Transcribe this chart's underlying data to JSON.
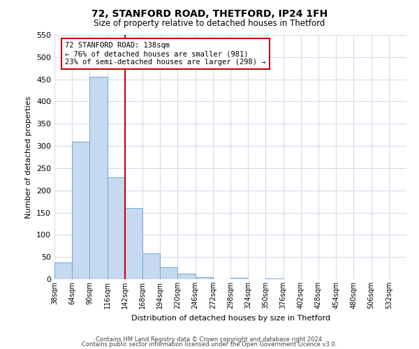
{
  "title": "72, STANFORD ROAD, THETFORD, IP24 1FH",
  "subtitle": "Size of property relative to detached houses in Thetford",
  "xlabel": "Distribution of detached houses by size in Thetford",
  "ylabel": "Number of detached properties",
  "footnote1": "Contains HM Land Registry data © Crown copyright and database right 2024.",
  "footnote2": "Contains public sector information licensed under the Open Government Licence v3.0.",
  "annotation_title": "72 STANFORD ROAD: 138sqm",
  "annotation_line1": "← 76% of detached houses are smaller (981)",
  "annotation_line2": "23% of semi-detached houses are larger (298) →",
  "bar_edges": [
    38,
    64,
    90,
    116,
    142,
    168,
    194,
    220,
    246,
    272,
    298,
    324,
    350,
    376,
    402,
    428,
    454,
    480,
    506,
    532,
    558
  ],
  "bar_heights": [
    38,
    310,
    455,
    230,
    160,
    58,
    26,
    12,
    5,
    0,
    3,
    0,
    2,
    0,
    0,
    0,
    0,
    0,
    0,
    0
  ],
  "bar_color": "#c6d9f0",
  "bar_edge_color": "#6fa8d6",
  "vline_color": "#cc0000",
  "vline_x": 142,
  "ylim": [
    0,
    550
  ],
  "yticks": [
    0,
    50,
    100,
    150,
    200,
    250,
    300,
    350,
    400,
    450,
    500,
    550
  ],
  "annotation_box_color": "#ffffff",
  "annotation_box_edge": "#cc0000",
  "background_color": "#ffffff",
  "grid_color": "#d0dcea"
}
